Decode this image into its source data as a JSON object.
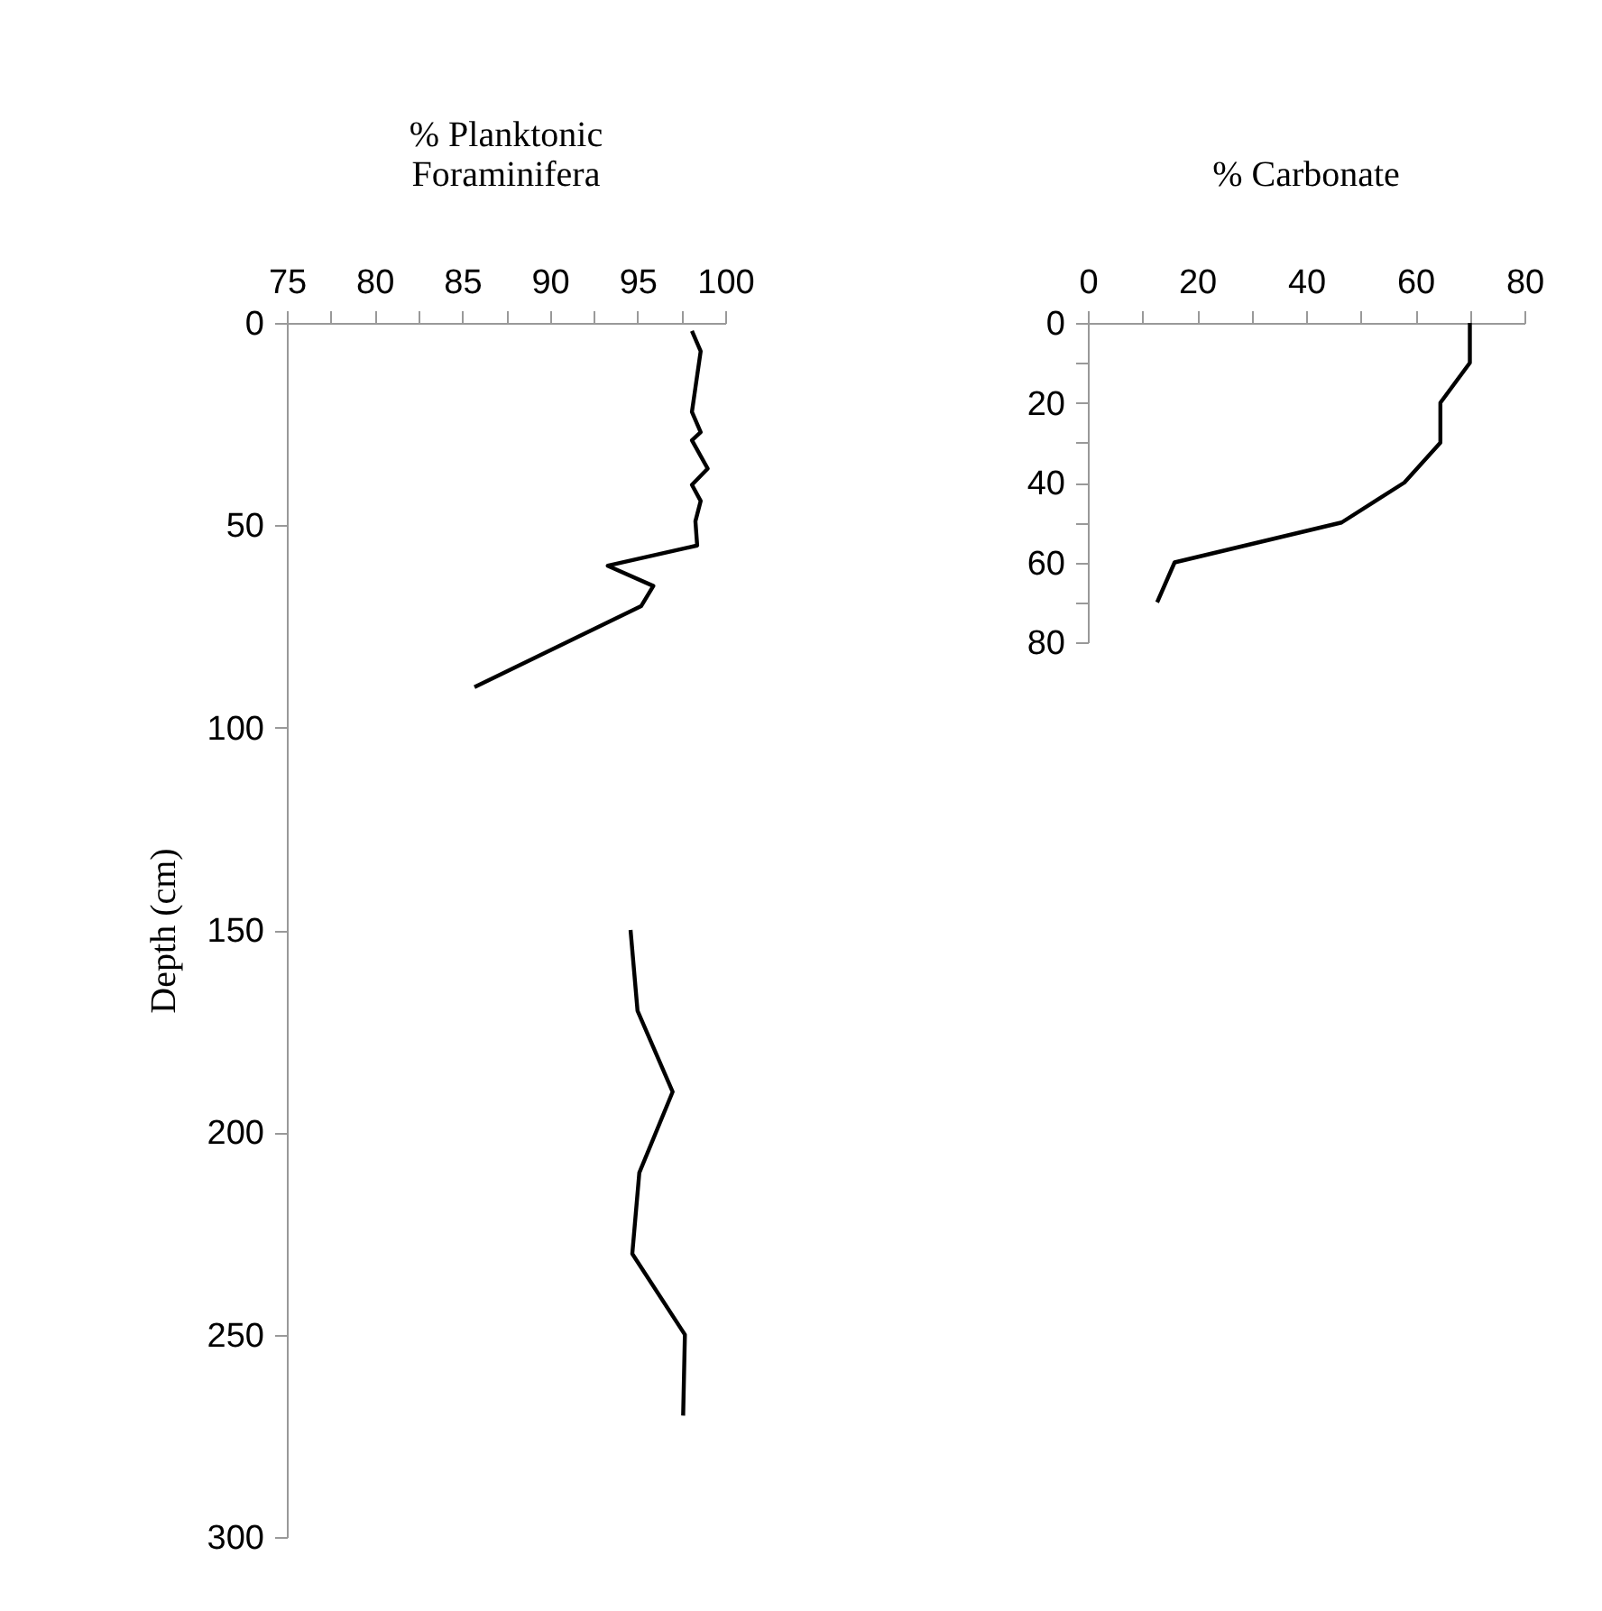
{
  "chart_data": [
    {
      "type": "line",
      "title": "% Planktonic\nForaminifera",
      "ylabel": "Depth (cm)",
      "xlim": [
        75,
        100
      ],
      "xticks": [
        75,
        {
          "value": 77.5,
          "label": null
        },
        80,
        {
          "value": 82.5,
          "label": null
        },
        85,
        {
          "value": 87.5,
          "label": null
        },
        90,
        {
          "value": 92.5,
          "label": null
        },
        95,
        {
          "value": 97.5,
          "label": null
        },
        100
      ],
      "ylim": [
        300,
        0
      ],
      "yticks": [
        0,
        50,
        100,
        150,
        200,
        250,
        300
      ],
      "grid": false,
      "legend": false,
      "marker": "none",
      "line_style": "solid",
      "series": [
        {
          "color": "#000000",
          "x": [
            98.1,
            98.6,
            98.3,
            98.1,
            98.6,
            98.1,
            99.0,
            98.1,
            98.6,
            98.3,
            98.4,
            93.3,
            95.9,
            95.2,
            85.7
          ],
          "values": [
            2,
            7,
            16,
            22,
            27,
            29,
            36,
            40,
            44,
            49,
            55,
            60,
            65,
            70,
            90
          ]
        },
        {
          "color": "#000000",
          "x": [
            94.6,
            95.0,
            97.0,
            95.1,
            94.7,
            97.7,
            97.6
          ],
          "values": [
            150,
            170,
            190,
            210,
            230,
            250,
            270
          ]
        }
      ]
    },
    {
      "type": "line",
      "title": "% Carbonate",
      "xlim": [
        0,
        80
      ],
      "xticks": [
        0,
        {
          "value": 10,
          "label": null
        },
        20,
        {
          "value": 30,
          "label": null
        },
        40,
        {
          "value": 50,
          "label": null
        },
        60,
        {
          "value": 70,
          "label": null
        },
        80
      ],
      "ylim": [
        80,
        0
      ],
      "yticks": [
        0,
        {
          "value": 10,
          "label": null
        },
        20,
        {
          "value": 30,
          "label": null
        },
        40,
        {
          "value": 50,
          "label": null
        },
        60,
        {
          "value": 70,
          "label": null
        },
        80
      ],
      "grid": false,
      "legend": false,
      "marker": "none",
      "line_style": "solid",
      "series": [
        {
          "color": "#000000",
          "x": [
            70,
            70,
            64.6,
            64.6,
            58,
            46.5,
            15.9,
            12.7
          ],
          "values": [
            0,
            10,
            20,
            30,
            40,
            50,
            60,
            70
          ]
        }
      ]
    }
  ]
}
